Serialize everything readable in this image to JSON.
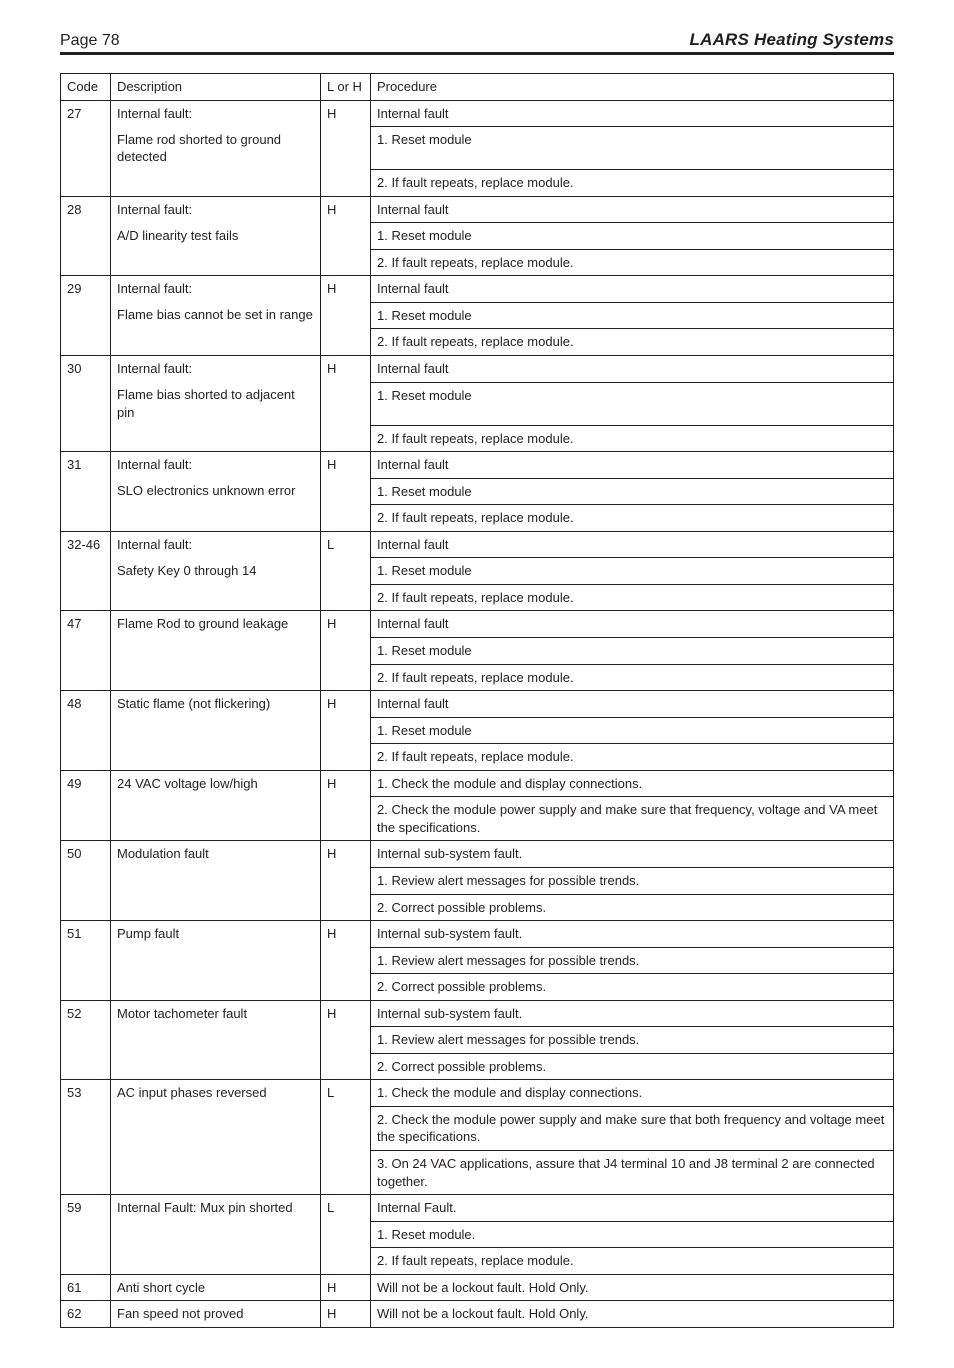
{
  "page_label": "Page 78",
  "brand": "LAARS Heating Systems",
  "columns": {
    "code": "Code",
    "description": "Description",
    "lh": "L or H",
    "procedure": "Procedure"
  },
  "rows": [
    {
      "code": "27",
      "lh": "H",
      "desc_lines": [
        "Internal fault:",
        "Flame rod shorted to ground detected"
      ],
      "proc_lines": [
        "Internal fault",
        "1. Reset module",
        "2. If fault repeats, replace module."
      ]
    },
    {
      "code": "28",
      "lh": "H",
      "desc_lines": [
        "Internal fault:",
        "A/D linearity test fails"
      ],
      "proc_lines": [
        "Internal fault",
        "1. Reset module",
        "2. If fault repeats, replace module."
      ]
    },
    {
      "code": "29",
      "lh": "H",
      "desc_lines": [
        "Internal fault:",
        "Flame bias cannot be set in range"
      ],
      "proc_lines": [
        "Internal fault",
        "1. Reset module",
        "2. If fault repeats, replace module."
      ]
    },
    {
      "code": "30",
      "lh": "H",
      "desc_lines": [
        "Internal fault:",
        "Flame bias shorted to adjacent pin"
      ],
      "proc_lines": [
        "Internal fault",
        "1. Reset module",
        "2. If fault repeats, replace module."
      ]
    },
    {
      "code": "31",
      "lh": "H",
      "desc_lines": [
        "Internal fault:",
        "SLO electronics unknown error"
      ],
      "proc_lines": [
        "Internal fault",
        "1. Reset module",
        "2. If fault repeats, replace module."
      ]
    },
    {
      "code": "32-46",
      "lh": "L",
      "desc_lines": [
        "Internal fault:",
        "Safety Key 0 through 14"
      ],
      "proc_lines": [
        "Internal fault",
        "1. Reset module",
        "2. If fault repeats, replace module."
      ]
    },
    {
      "code": "47",
      "lh": "H",
      "desc_lines": [
        "Flame Rod to ground leakage"
      ],
      "proc_lines": [
        "Internal fault",
        "1. Reset module",
        "2. If fault repeats, replace module."
      ]
    },
    {
      "code": "48",
      "lh": "H",
      "desc_lines": [
        "Static flame (not flickering)"
      ],
      "proc_lines": [
        "Internal fault",
        "1. Reset module",
        "2. If fault repeats, replace module."
      ]
    },
    {
      "code": "49",
      "lh": "H",
      "desc_lines": [
        "24 VAC voltage low/high"
      ],
      "proc_lines": [
        "1. Check the module and display connections.",
        "2. Check the module power supply and make sure that frequency, voltage and VA meet the specifications."
      ]
    },
    {
      "code": "50",
      "lh": "H",
      "desc_lines": [
        "Modulation fault"
      ],
      "proc_lines": [
        "Internal sub-system fault.",
        "1. Review alert messages for possible trends.",
        "2. Correct possible problems."
      ]
    },
    {
      "code": "51",
      "lh": "H",
      "desc_lines": [
        "Pump fault"
      ],
      "proc_lines": [
        "Internal sub-system fault.",
        "1. Review alert messages for possible trends.",
        "2. Correct possible problems."
      ]
    },
    {
      "code": "52",
      "lh": "H",
      "desc_lines": [
        "Motor tachometer fault"
      ],
      "proc_lines": [
        "Internal sub-system fault.",
        "1. Review alert messages for possible trends.",
        "2. Correct possible problems."
      ]
    },
    {
      "code": "53",
      "lh": "L",
      "desc_lines": [
        "AC input phases reversed"
      ],
      "proc_lines": [
        "1. Check the module and display connections.",
        "2. Check the module power supply and make sure that both frequency and voltage meet the specifications.",
        "3. On 24 VAC applications, assure that J4 terminal 10 and J8 terminal 2 are connected together."
      ]
    },
    {
      "code": "59",
      "lh": "L",
      "desc_lines": [
        "Internal Fault: Mux pin shorted"
      ],
      "proc_lines": [
        "Internal Fault.",
        "1. Reset module.",
        "2. If fault repeats, replace module."
      ]
    },
    {
      "code": "61",
      "lh": "H",
      "desc_lines": [
        "Anti short cycle"
      ],
      "proc_lines": [
        "Will not be a lockout fault. Hold Only."
      ]
    },
    {
      "code": "62",
      "lh": "H",
      "desc_lines": [
        "Fan speed not proved"
      ],
      "proc_lines": [
        "Will not be a lockout fault. Hold Only."
      ]
    }
  ]
}
